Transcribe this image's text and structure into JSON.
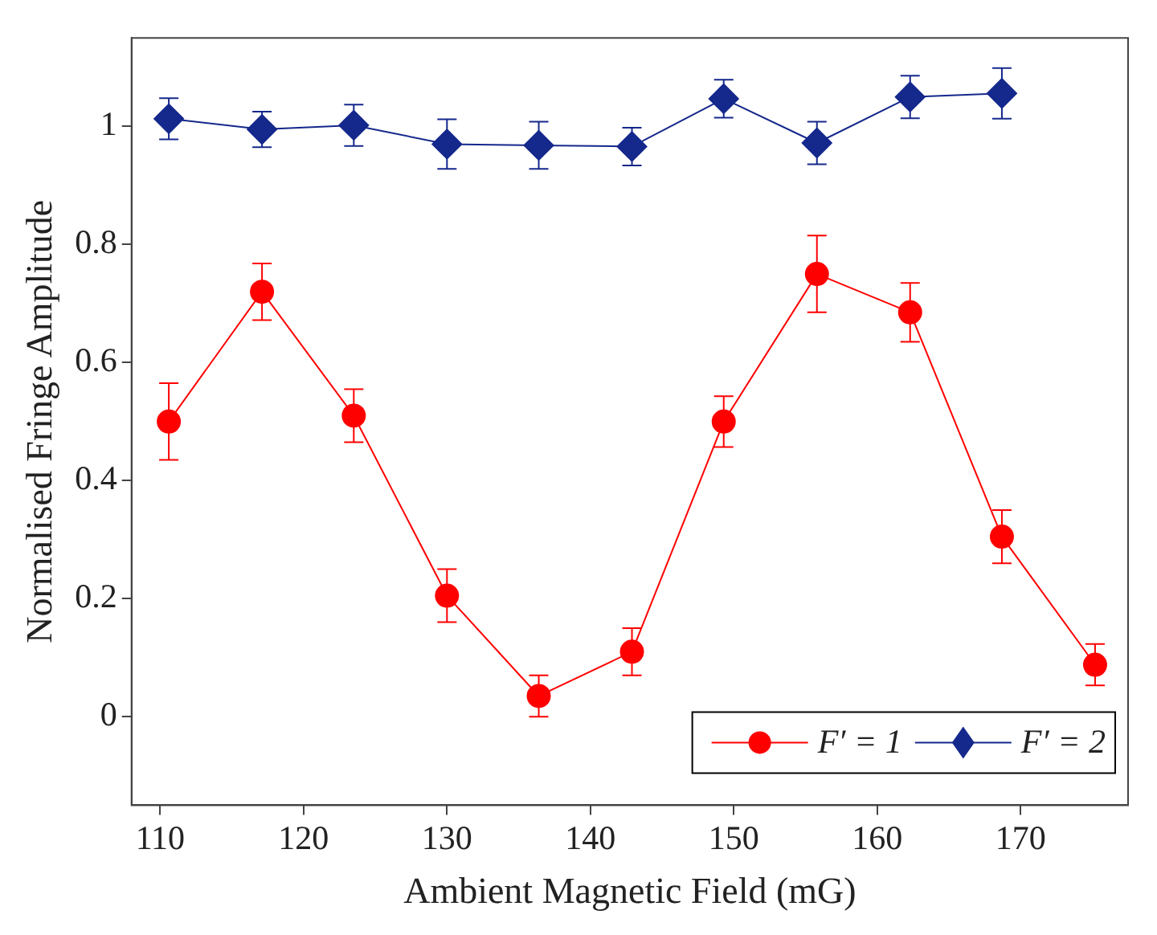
{
  "chart_data": {
    "type": "line",
    "xlabel": "Ambient Magnetic Field (mG)",
    "ylabel": "Normalised Fringe Amplitude",
    "xlim": [
      108,
      177.5
    ],
    "xticks": [
      110,
      120,
      130,
      140,
      150,
      160,
      170
    ],
    "ylim": [
      -0.15,
      1.15
    ],
    "yticks": [
      0,
      0.2,
      0.4,
      0.6,
      0.8,
      1
    ],
    "grid": false,
    "legend": "bottom right",
    "line_style": "solid",
    "series": [
      {
        "name": "F′ = 1",
        "color": "#ff0000",
        "marker": "circle",
        "x": [
          110.6,
          117.1,
          123.5,
          130,
          136.4,
          142.9,
          149.3,
          155.8,
          162.3,
          168.7,
          175.2
        ],
        "values": [
          0.5,
          0.72,
          0.51,
          0.205,
          0.035,
          0.11,
          0.5,
          0.75,
          0.685,
          0.305,
          0.088
        ],
        "errors": [
          0.065,
          0.048,
          0.045,
          0.045,
          0.035,
          0.04,
          0.043,
          0.065,
          0.05,
          0.045,
          0.035
        ]
      },
      {
        "name": "F′ = 2",
        "color": "#15288c",
        "marker": "diamond",
        "x": [
          110.6,
          117.1,
          123.5,
          130,
          136.4,
          142.9,
          149.3,
          155.8,
          162.3,
          168.7
        ],
        "values": [
          1.013,
          0.995,
          1.002,
          0.97,
          0.968,
          0.966,
          1.047,
          0.972,
          1.05,
          1.056
        ],
        "errors": [
          0.035,
          0.03,
          0.035,
          0.042,
          0.04,
          0.032,
          0.032,
          0.036,
          0.036,
          0.043
        ]
      }
    ]
  }
}
